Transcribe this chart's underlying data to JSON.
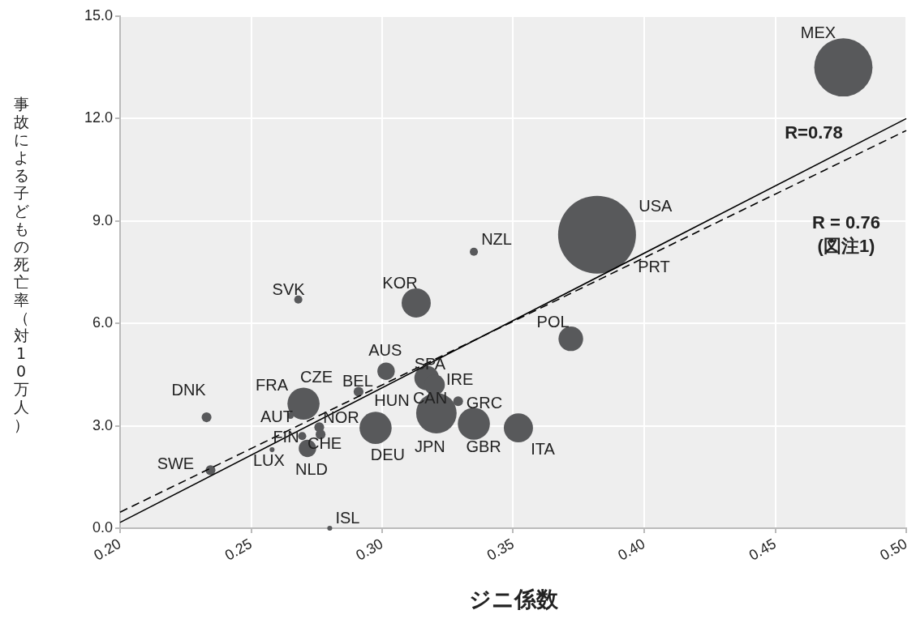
{
  "chart_data": {
    "type": "bubble",
    "xlabel": "ジニ係数",
    "ylabel": "事故による子どもの死亡率（対10万人）",
    "xlim": [
      0.2,
      0.5
    ],
    "xticks": [
      {
        "value": 0.2,
        "label": "0.20"
      },
      {
        "value": 0.25,
        "label": "0.25"
      },
      {
        "value": 0.3,
        "label": "0.30"
      },
      {
        "value": 0.35,
        "label": "0.35"
      },
      {
        "value": 0.4,
        "label": "0.40"
      },
      {
        "value": 0.45,
        "label": "0.45"
      },
      {
        "value": 0.5,
        "label": "0.50"
      }
    ],
    "ylim": [
      0,
      15
    ],
    "yticks": [
      {
        "value": 0,
        "label": "0.0"
      },
      {
        "value": 3,
        "label": "3.0"
      },
      {
        "value": 6,
        "label": "6.0"
      },
      {
        "value": 9,
        "label": "9.0"
      },
      {
        "value": 12,
        "label": "12.0"
      },
      {
        "value": 15,
        "label": "15.0"
      }
    ],
    "grid": true,
    "legend": false,
    "series": [
      {
        "color": "#58595b",
        "x": [
          0.476,
          0.382,
          0.335,
          0.268,
          0.313,
          0.372,
          0.3015,
          0.317,
          0.32,
          0.329,
          0.3207,
          0.335,
          0.27,
          0.291,
          0.233,
          0.265,
          0.276,
          0.2765,
          0.2695,
          0.258,
          0.2715,
          0.2345,
          0.28,
          0.2975,
          0.352
        ],
        "values": [
          13.5,
          8.6,
          8.1,
          6.7,
          6.6,
          5.55,
          4.6,
          4.4,
          4.2,
          3.72,
          3.37,
          3.06,
          3.65,
          4.0,
          3.25,
          3.3,
          2.96,
          2.75,
          2.7,
          2.3,
          2.34,
          1.7,
          0.0,
          2.94,
          2.94
        ],
        "sizes": [
          0.56,
          1,
          0.011,
          0.011,
          0.14,
          0.1,
          0.05,
          0.1,
          0.07,
          0.016,
          0.27,
          0.17,
          0.17,
          0.016,
          0.016,
          0.007,
          0.016,
          0.016,
          0.011,
          0.004,
          0.05,
          0.016,
          0.004,
          0.17,
          0.14
        ]
      },
      {
        "type": "line",
        "color": "#000000",
        "x": [
          0.2,
          0.5
        ],
        "values": [
          0.17,
          12.0
        ]
      },
      {
        "type": "line",
        "color": "#000000",
        "line_style": "dashed",
        "x": [
          0.2,
          0.5
        ],
        "values": [
          0.47,
          11.65
        ]
      }
    ],
    "annotations": [
      {
        "text": "MEX",
        "x": 0.476,
        "y": 13.5
      },
      {
        "text": "USA",
        "x": 0.382,
        "y": 8.6
      },
      {
        "text": "NZL",
        "x": 0.335,
        "y": 8.1
      },
      {
        "text": "SVK",
        "x": 0.268,
        "y": 6.7
      },
      {
        "text": "KOR",
        "x": 0.313,
        "y": 6.6
      },
      {
        "text": "POL",
        "x": 0.372,
        "y": 5.55
      },
      {
        "text": "AUS",
        "x": 0.3015,
        "y": 4.6
      },
      {
        "text": "SPA",
        "x": 0.317,
        "y": 4.4
      },
      {
        "text": "IRE",
        "x": 0.329,
        "y": 3.72
      },
      {
        "text": "JPN",
        "x": 0.3207,
        "y": 3.37
      },
      {
        "text": "GBR",
        "x": 0.335,
        "y": 3.06
      },
      {
        "text": "FRA",
        "x": 0.27,
        "y": 3.65
      },
      {
        "text": "BEL",
        "x": 0.291,
        "y": 4.0
      },
      {
        "text": "DNK",
        "x": 0.233,
        "y": 3.25
      },
      {
        "text": "AUT",
        "x": 0.265,
        "y": 3.3
      },
      {
        "text": "NOR",
        "x": 0.276,
        "y": 2.96
      },
      {
        "text": "CHE",
        "x": 0.2765,
        "y": 2.75
      },
      {
        "text": "FIN",
        "x": 0.2695,
        "y": 2.7
      },
      {
        "text": "LUX",
        "x": 0.258,
        "y": 2.3
      },
      {
        "text": "NLD",
        "x": 0.2715,
        "y": 2.34
      },
      {
        "text": "SWE",
        "x": 0.2345,
        "y": 1.7
      },
      {
        "text": "ISL",
        "x": 0.28,
        "y": 0.0
      },
      {
        "text": "DEU",
        "x": 0.2975,
        "y": 2.94
      },
      {
        "text": "ITA",
        "x": 0.352,
        "y": 2.94
      },
      "GRC",
      "CAN",
      "HUN",
      "CZE",
      "PRT",
      "R=0.78",
      "R = 0.76",
      "(図注1)"
    ]
  }
}
